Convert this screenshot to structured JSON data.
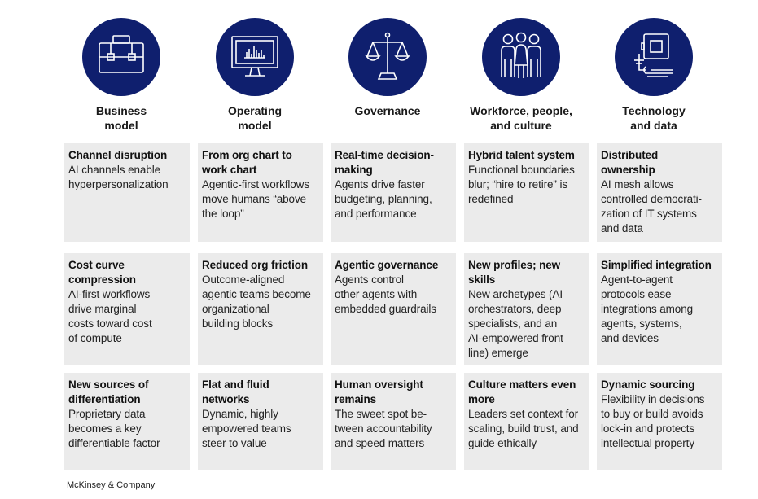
{
  "colors": {
    "icon_fill": "#0f1f6e",
    "cell_bg": "#ebebeb",
    "icon_stroke": "#ffffff"
  },
  "columns": [
    {
      "icon": "briefcase-icon",
      "header": [
        "Business",
        "model"
      ],
      "cells": [
        {
          "title": [
            "Channel disruption"
          ],
          "desc": [
            "AI channels enable",
            "hyperpersonalization"
          ]
        },
        {
          "title": [
            "Cost curve",
            "compression"
          ],
          "desc": [
            "AI-first workflows",
            "drive marginal",
            "costs toward cost",
            "of compute"
          ]
        },
        {
          "title": [
            "New sources of",
            "differentiation"
          ],
          "desc": [
            "Proprietary data",
            "becomes a key",
            "differentiable factor"
          ]
        }
      ]
    },
    {
      "icon": "monitor-chart-icon",
      "header": [
        "Operating",
        "model"
      ],
      "cells": [
        {
          "title": [
            "From org chart to",
            "work chart"
          ],
          "desc": [
            "Agentic-first workflows",
            "move humans “above",
            "the loop”"
          ]
        },
        {
          "title": [
            "Reduced org friction"
          ],
          "desc": [
            "Outcome-aligned",
            "agentic teams become",
            "organizational",
            "building blocks"
          ]
        },
        {
          "title": [
            "Flat and fluid",
            "networks"
          ],
          "desc": [
            "Dynamic, highly",
            "empowered teams",
            "steer to value"
          ]
        }
      ]
    },
    {
      "icon": "scales-icon",
      "header": [
        "Governance"
      ],
      "cells": [
        {
          "title": [
            "Real-time decision-",
            "making"
          ],
          "desc": [
            "Agents drive faster",
            "budgeting, planning,",
            "and performance"
          ]
        },
        {
          "title": [
            "Agentic governance"
          ],
          "desc": [
            "Agents control",
            "other agents with",
            "embedded guardrails"
          ]
        },
        {
          "title": [
            "Human oversight",
            "remains"
          ],
          "desc": [
            "The sweet spot be-",
            "tween accountability",
            "and speed matters"
          ]
        }
      ]
    },
    {
      "icon": "people-icon",
      "header": [
        "Workforce, people,",
        "and culture"
      ],
      "cells": [
        {
          "title": [
            "Hybrid talent system"
          ],
          "desc": [
            "Functional boundaries",
            "blur; “hire to retire” is",
            "redefined"
          ]
        },
        {
          "title": [
            "New profiles; new",
            "skills"
          ],
          "desc": [
            "New archetypes (AI",
            "orchestrators, deep",
            "specialists, and an",
            "AI-empowered front",
            "line) emerge"
          ]
        },
        {
          "title": [
            "Culture matters even",
            "more"
          ],
          "desc": [
            "Leaders set context for",
            "scaling, build trust, and",
            "guide ethically"
          ]
        }
      ]
    },
    {
      "icon": "device-circuit-icon",
      "header": [
        "Technology",
        "and data"
      ],
      "cells": [
        {
          "title": [
            "Distributed",
            "ownership"
          ],
          "desc": [
            "AI mesh allows",
            "controlled democrati-",
            "zation of IT systems",
            "and data"
          ]
        },
        {
          "title": [
            "Simplified integration"
          ],
          "desc": [
            "Agent-to-agent",
            "protocols ease",
            "integrations among",
            "agents, systems,",
            "and devices"
          ]
        },
        {
          "title": [
            "Dynamic sourcing"
          ],
          "desc": [
            "Flexibility in decisions",
            "to buy or build avoids",
            "lock-in and protects",
            "intellectual property"
          ]
        }
      ]
    }
  ],
  "footer": "McKinsey & Company"
}
